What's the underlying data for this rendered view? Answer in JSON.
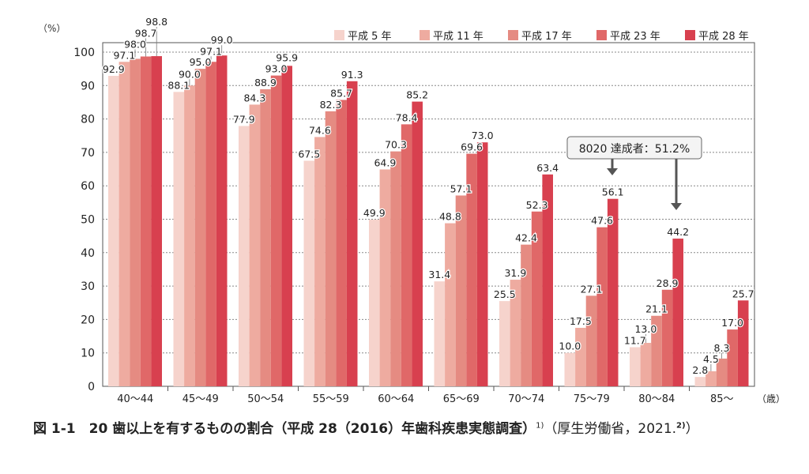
{
  "chart_data": {
    "type": "bar",
    "ylabel": "（%）",
    "xunit": "（歳）",
    "ylim": [
      0,
      100
    ],
    "yticks": [
      0,
      10,
      20,
      30,
      40,
      50,
      60,
      70,
      80,
      90,
      100
    ],
    "grid": true,
    "legend_position": "top-right",
    "categories": [
      "40～44",
      "45～49",
      "50～54",
      "55～59",
      "60～64",
      "65～69",
      "70～74",
      "75～79",
      "80～84",
      "85～"
    ],
    "series": [
      {
        "name": "平成 5 年",
        "color": "#f6d3cc",
        "values": [
          92.9,
          88.1,
          77.9,
          67.5,
          49.9,
          31.4,
          25.5,
          10.0,
          11.7,
          2.8
        ]
      },
      {
        "name": "平成 11 年",
        "color": "#eeaba0",
        "values": [
          97.1,
          90.0,
          84.3,
          74.6,
          64.9,
          48.8,
          31.9,
          17.5,
          13.0,
          4.5
        ]
      },
      {
        "name": "平成 17 年",
        "color": "#e58b82",
        "values": [
          98.0,
          95.0,
          88.9,
          82.3,
          70.3,
          57.1,
          42.4,
          27.1,
          21.1,
          8.3
        ]
      },
      {
        "name": "平成 23 年",
        "color": "#e06868",
        "values": [
          98.7,
          97.1,
          93.0,
          85.7,
          78.4,
          69.6,
          52.3,
          47.6,
          28.9,
          17.0
        ]
      },
      {
        "name": "平成 28 年",
        "color": "#d8404f",
        "values": [
          98.8,
          99.0,
          95.9,
          91.3,
          85.2,
          73.0,
          63.4,
          56.1,
          44.2,
          25.7
        ]
      }
    ],
    "annotation": "8020 達成者：51.2%"
  },
  "caption": {
    "title": "図 1-1　20 歯以上を有するものの割合（平成 28（2016）年歯科疾患実態調査）",
    "ref1": "1)",
    "source": "（厚生労働省，2021.",
    "ref2": "2)",
    "close": "）"
  }
}
